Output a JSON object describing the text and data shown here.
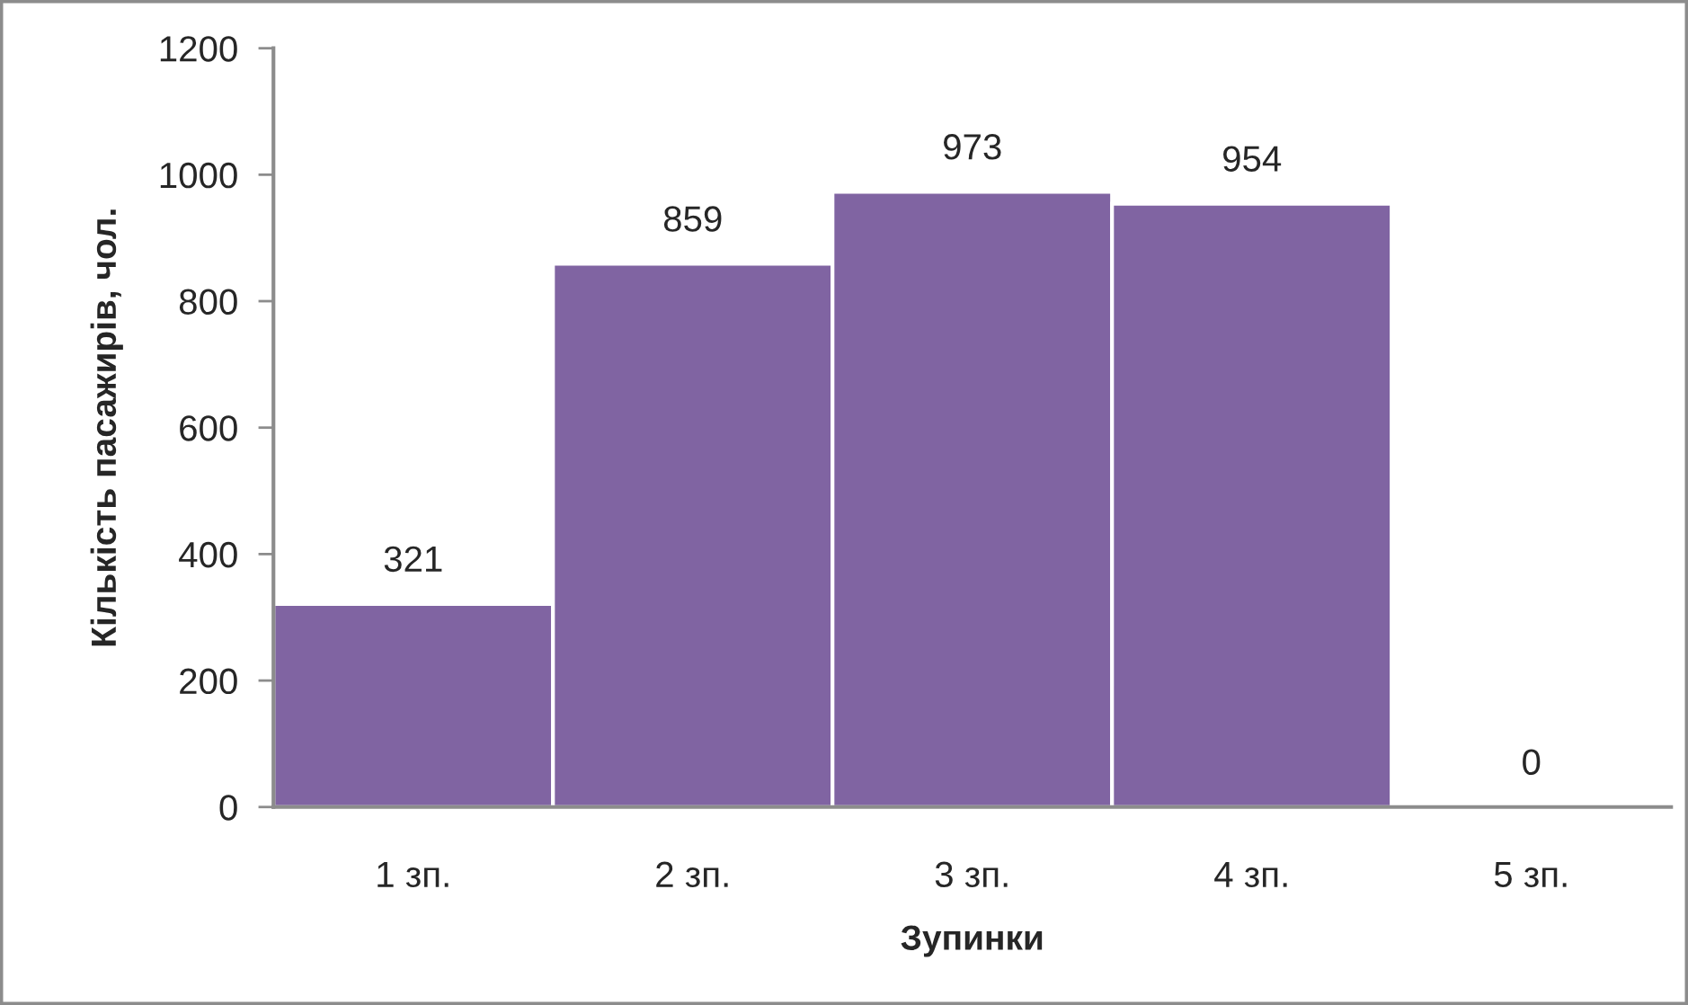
{
  "chart_data": {
    "type": "bar",
    "xlabel": "Зупинки",
    "ylabel": "Кількість пасажирів, чол.",
    "categories": [
      "1 зп.",
      "2 зп.",
      "3 зп.",
      "4 зп.",
      "5 зп."
    ],
    "values": [
      321,
      859,
      973,
      954,
      0
    ],
    "color": "#8064a2",
    "ylim": [
      0,
      1200
    ],
    "yticks": [
      0,
      200,
      400,
      600,
      800,
      1000,
      1200
    ],
    "data_labels": true
  }
}
